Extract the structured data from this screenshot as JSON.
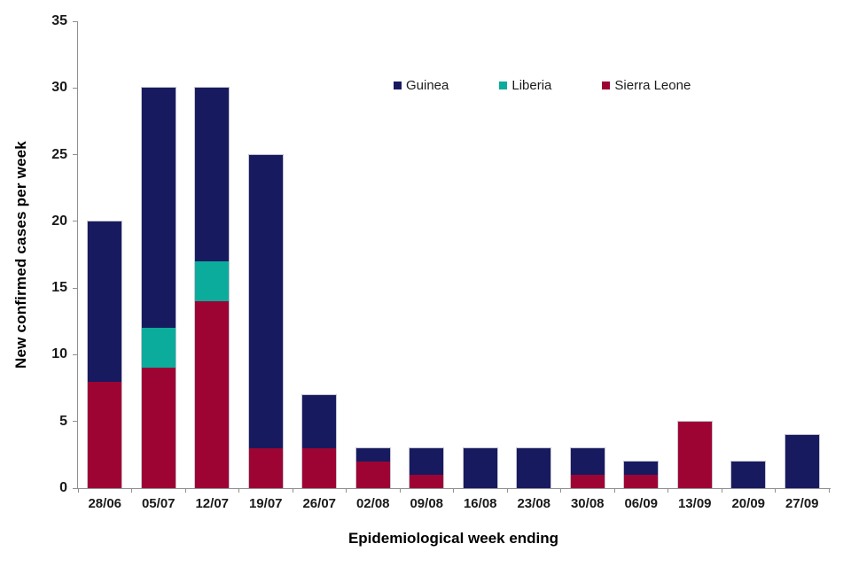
{
  "chart_data": {
    "type": "bar",
    "stacked": true,
    "title": "",
    "xlabel": "Epidemiological week ending",
    "ylabel": "New confirmed cases per week",
    "ylim": [
      0,
      35
    ],
    "yticks": [
      0,
      5,
      10,
      15,
      20,
      25,
      30,
      35
    ],
    "grid": false,
    "legend_position": "inside-top-right",
    "categories": [
      "28/06",
      "05/07",
      "12/07",
      "19/07",
      "26/07",
      "02/08",
      "09/08",
      "16/08",
      "23/08",
      "30/08",
      "06/09",
      "13/09",
      "20/09",
      "27/09"
    ],
    "series": [
      {
        "name": "Sierra Leone",
        "color": "#9E0433",
        "stack_position": "bottom",
        "values": [
          8,
          9,
          14,
          3,
          3,
          2,
          1,
          0,
          0,
          1,
          1,
          5,
          0,
          0
        ]
      },
      {
        "name": "Liberia",
        "color": "#0CAC9C",
        "stack_position": "middle",
        "values": [
          0,
          3,
          3,
          0,
          0,
          0,
          0,
          0,
          0,
          0,
          0,
          0,
          0,
          0
        ]
      },
      {
        "name": "Guinea",
        "color": "#181A60",
        "stack_position": "top",
        "values": [
          12,
          18,
          13,
          22,
          4,
          1,
          2,
          3,
          3,
          2,
          1,
          0,
          2,
          4
        ]
      }
    ],
    "totals": [
      20,
      30,
      30,
      25,
      7,
      3,
      3,
      3,
      3,
      3,
      2,
      5,
      2,
      4
    ],
    "legend_items": [
      {
        "label": "Guinea",
        "color": "#181A60"
      },
      {
        "label": "Liberia",
        "color": "#0CAC9C"
      },
      {
        "label": "Sierra Leone",
        "color": "#9E0433"
      }
    ]
  },
  "colors": {
    "axis_line": "#8f8f8f",
    "background": "#ffffff",
    "text": "#1a1a1a"
  }
}
